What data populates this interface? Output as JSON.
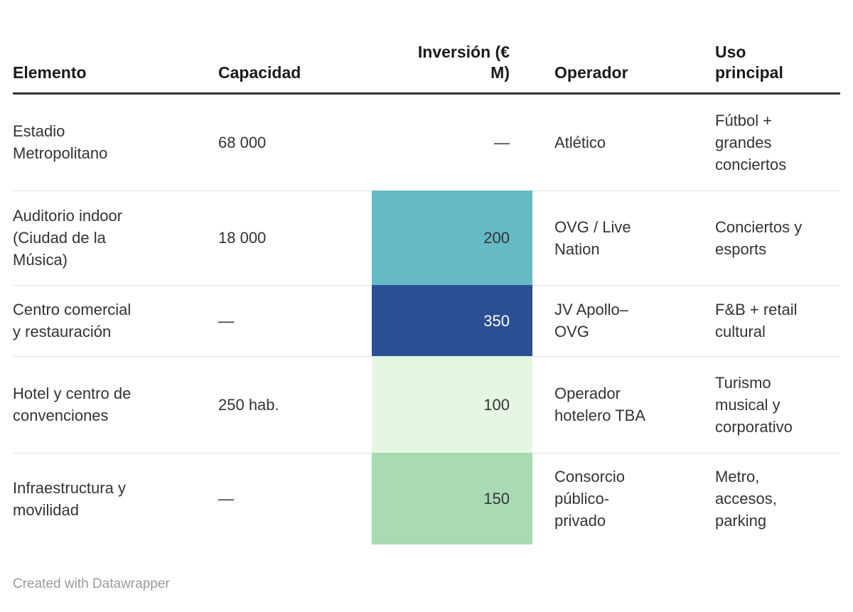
{
  "chart_data": {
    "type": "table",
    "title": "",
    "columns": [
      "Elemento",
      "Capacidad",
      "Inversión (€ M)",
      "Operador",
      "Uso principal"
    ],
    "heatmap_column": "Inversión (€ M)",
    "rows": [
      {
        "elemento": "Estadio Metropolitano",
        "capacidad": "68 000",
        "inversion": "—",
        "inversion_value": null,
        "inversion_style": "",
        "operador": "Atlético",
        "uso": "Fútbol + grandes conciertos"
      },
      {
        "elemento": "Auditorio indoor (Ciudad de la Música)",
        "capacidad": "18 000",
        "inversion": "200",
        "inversion_value": 200,
        "inversion_style": "background-color:#65bac5",
        "operador": "OVG / Live Nation",
        "uso": "Conciertos y esports"
      },
      {
        "elemento": "Centro comercial y restauración",
        "capacidad": "—",
        "inversion": "350",
        "inversion_value": 350,
        "inversion_style": "background-color:#2a4f94;color:#ffffff",
        "operador": "JV Apollo–OVG",
        "uso": "F&B + retail cultural"
      },
      {
        "elemento": "Hotel y centro de convenciones",
        "capacidad": "250 hab.",
        "inversion": "100",
        "inversion_value": 100,
        "inversion_style": "background-color:#e5f7e3",
        "operador": "Operador hotelero TBA",
        "uso": "Turismo musical y corporativo"
      },
      {
        "elemento": "Infraestructura y movilidad",
        "capacidad": "—",
        "inversion": "150",
        "inversion_value": 150,
        "inversion_style": "background-color:#a8dbb4",
        "operador": "Consorcio público-privado",
        "uso": "Metro, accesos, parking"
      }
    ],
    "palette": {
      "teal": "#65bac5",
      "dark_blue": "#2a4f94",
      "light_green": "#e5f7e3",
      "medium_green": "#a8dbb4"
    }
  },
  "header": {
    "inversion_label_display": "Inversión (€ M)"
  },
  "footer": {
    "credit": "Created with Datawrapper"
  },
  "colors": {
    "background": "#ffffff",
    "text": "#333333",
    "header_text": "#1a1a1a",
    "header_rule": "#333333",
    "row_divider": "#e0e0e0",
    "footer_text": "#9b9b9b"
  }
}
